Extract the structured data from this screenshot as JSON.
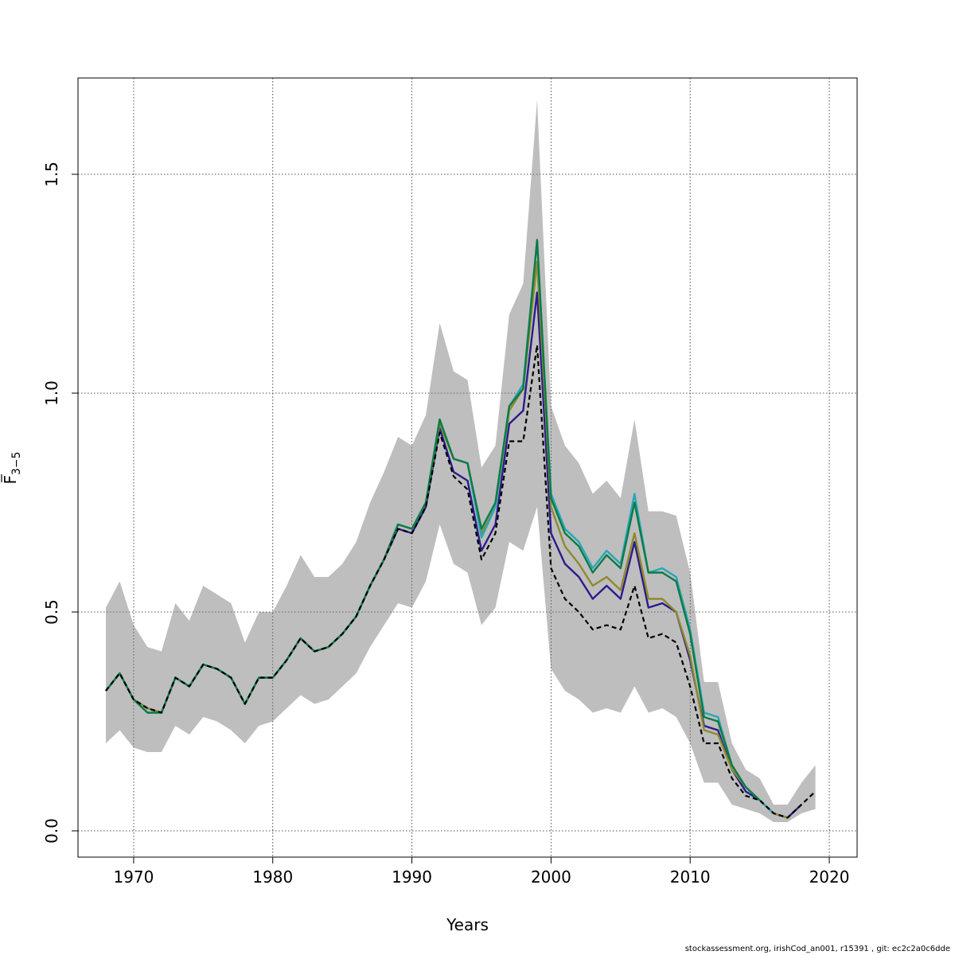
{
  "footer": "stockassessment.org, irishCod_an001, r15391 , git: ec2c2a0c6dde",
  "chart_data": {
    "type": "line",
    "title": "",
    "xlabel": "Years",
    "ylabel_base": "F",
    "ylabel_sub": "3−5",
    "xlim": [
      1966,
      2022
    ],
    "ylim": [
      -0.06,
      1.72
    ],
    "xticks": [
      1970,
      1980,
      1990,
      2000,
      2010,
      2020
    ],
    "yticks": [
      0.0,
      0.5,
      1.0,
      1.5
    ],
    "ytick_labels": [
      "0.0",
      "0.5",
      "1.0",
      "1.5"
    ],
    "grid": true,
    "colors": {
      "band": "#bebebe",
      "base": "#000000",
      "peel1": "#2c1b8b",
      "peel2": "#8f8a2e",
      "peel3": "#27a6b8",
      "peel4": "#0c7c44"
    },
    "band": {
      "x": [
        1968,
        1969,
        1970,
        1971,
        1972,
        1973,
        1974,
        1975,
        1976,
        1977,
        1978,
        1979,
        1980,
        1981,
        1982,
        1983,
        1984,
        1985,
        1986,
        1987,
        1988,
        1989,
        1990,
        1991,
        1992,
        1993,
        1994,
        1995,
        1996,
        1997,
        1998,
        1999,
        2000,
        2001,
        2002,
        2003,
        2004,
        2005,
        2006,
        2007,
        2008,
        2009,
        2010,
        2011,
        2012,
        2013,
        2014,
        2015,
        2016,
        2017,
        2018,
        2019
      ],
      "lower": [
        0.2,
        0.23,
        0.19,
        0.18,
        0.18,
        0.24,
        0.22,
        0.26,
        0.25,
        0.23,
        0.2,
        0.24,
        0.25,
        0.28,
        0.31,
        0.29,
        0.3,
        0.33,
        0.36,
        0.42,
        0.47,
        0.52,
        0.51,
        0.57,
        0.7,
        0.61,
        0.59,
        0.47,
        0.51,
        0.66,
        0.64,
        0.74,
        0.37,
        0.32,
        0.3,
        0.27,
        0.28,
        0.27,
        0.33,
        0.27,
        0.28,
        0.26,
        0.2,
        0.11,
        0.11,
        0.06,
        0.05,
        0.04,
        0.02,
        0.02,
        0.04,
        0.05
      ],
      "upper": [
        0.51,
        0.57,
        0.47,
        0.42,
        0.41,
        0.52,
        0.48,
        0.56,
        0.54,
        0.52,
        0.43,
        0.5,
        0.5,
        0.56,
        0.63,
        0.58,
        0.58,
        0.61,
        0.66,
        0.75,
        0.82,
        0.9,
        0.88,
        0.95,
        1.16,
        1.05,
        1.03,
        0.83,
        0.88,
        1.18,
        1.25,
        1.67,
        0.97,
        0.88,
        0.84,
        0.77,
        0.8,
        0.76,
        0.94,
        0.73,
        0.73,
        0.72,
        0.59,
        0.34,
        0.34,
        0.2,
        0.14,
        0.12,
        0.06,
        0.06,
        0.11,
        0.15
      ]
    },
    "series": [
      {
        "key": "base",
        "style": "dashed",
        "x": [
          1968,
          1969,
          1970,
          1971,
          1972,
          1973,
          1974,
          1975,
          1976,
          1977,
          1978,
          1979,
          1980,
          1981,
          1982,
          1983,
          1984,
          1985,
          1986,
          1987,
          1988,
          1989,
          1990,
          1991,
          1992,
          1993,
          1994,
          1995,
          1996,
          1997,
          1998,
          1999,
          2000,
          2001,
          2002,
          2003,
          2004,
          2005,
          2006,
          2007,
          2008,
          2009,
          2010,
          2011,
          2012,
          2013,
          2014,
          2015,
          2016,
          2017,
          2018,
          2019
        ],
        "y": [
          0.32,
          0.36,
          0.3,
          0.28,
          0.27,
          0.35,
          0.33,
          0.38,
          0.37,
          0.35,
          0.29,
          0.35,
          0.35,
          0.39,
          0.44,
          0.41,
          0.42,
          0.45,
          0.49,
          0.56,
          0.62,
          0.69,
          0.68,
          0.74,
          0.91,
          0.81,
          0.78,
          0.62,
          0.68,
          0.89,
          0.89,
          1.11,
          0.6,
          0.53,
          0.5,
          0.46,
          0.47,
          0.46,
          0.56,
          0.44,
          0.45,
          0.43,
          0.33,
          0.2,
          0.2,
          0.12,
          0.08,
          0.07,
          0.04,
          0.03,
          0.06,
          0.09
        ]
      },
      {
        "key": "peel1",
        "style": "solid",
        "x": [
          1968,
          1969,
          1970,
          1971,
          1972,
          1973,
          1974,
          1975,
          1976,
          1977,
          1978,
          1979,
          1980,
          1981,
          1982,
          1983,
          1984,
          1985,
          1986,
          1987,
          1988,
          1989,
          1990,
          1991,
          1992,
          1993,
          1994,
          1995,
          1996,
          1997,
          1998,
          1999,
          2000,
          2001,
          2002,
          2003,
          2004,
          2005,
          2006,
          2007,
          2008,
          2009,
          2010,
          2011,
          2012,
          2013,
          2014,
          2015,
          2016,
          2017,
          2018
        ],
        "y": [
          0.32,
          0.36,
          0.3,
          0.28,
          0.27,
          0.35,
          0.33,
          0.38,
          0.37,
          0.35,
          0.29,
          0.35,
          0.35,
          0.39,
          0.44,
          0.41,
          0.42,
          0.45,
          0.49,
          0.56,
          0.62,
          0.69,
          0.68,
          0.74,
          0.92,
          0.82,
          0.8,
          0.64,
          0.7,
          0.93,
          0.96,
          1.23,
          0.68,
          0.61,
          0.58,
          0.53,
          0.56,
          0.53,
          0.66,
          0.51,
          0.52,
          0.5,
          0.39,
          0.24,
          0.23,
          0.14,
          0.09,
          0.07,
          0.04,
          0.03,
          0.06
        ]
      },
      {
        "key": "peel2",
        "style": "solid",
        "x": [
          1968,
          1969,
          1970,
          1971,
          1972,
          1973,
          1974,
          1975,
          1976,
          1977,
          1978,
          1979,
          1980,
          1981,
          1982,
          1983,
          1984,
          1985,
          1986,
          1987,
          1988,
          1989,
          1990,
          1991,
          1992,
          1993,
          1994,
          1995,
          1996,
          1997,
          1998,
          1999,
          2000,
          2001,
          2002,
          2003,
          2004,
          2005,
          2006,
          2007,
          2008,
          2009,
          2010,
          2011,
          2012,
          2013,
          2014,
          2015,
          2016,
          2017
        ],
        "y": [
          0.32,
          0.36,
          0.3,
          0.28,
          0.27,
          0.35,
          0.33,
          0.38,
          0.37,
          0.35,
          0.29,
          0.35,
          0.35,
          0.39,
          0.44,
          0.41,
          0.42,
          0.45,
          0.49,
          0.56,
          0.62,
          0.7,
          0.69,
          0.75,
          0.93,
          0.85,
          0.84,
          0.68,
          0.74,
          0.96,
          1.01,
          1.3,
          0.74,
          0.65,
          0.61,
          0.56,
          0.58,
          0.55,
          0.68,
          0.53,
          0.53,
          0.5,
          0.4,
          0.23,
          0.22,
          0.14,
          0.1,
          0.07,
          0.04,
          0.03
        ]
      },
      {
        "key": "peel3",
        "style": "solid",
        "x": [
          1968,
          1969,
          1970,
          1971,
          1972,
          1973,
          1974,
          1975,
          1976,
          1977,
          1978,
          1979,
          1980,
          1981,
          1982,
          1983,
          1984,
          1985,
          1986,
          1987,
          1988,
          1989,
          1990,
          1991,
          1992,
          1993,
          1994,
          1995,
          1996,
          1997,
          1998,
          1999,
          2000,
          2001,
          2002,
          2003,
          2004,
          2005,
          2006,
          2007,
          2008,
          2009,
          2010,
          2011,
          2012,
          2013,
          2014,
          2015,
          2016
        ],
        "y": [
          0.32,
          0.36,
          0.3,
          0.27,
          0.27,
          0.35,
          0.33,
          0.38,
          0.37,
          0.35,
          0.29,
          0.35,
          0.35,
          0.39,
          0.44,
          0.41,
          0.42,
          0.45,
          0.49,
          0.56,
          0.62,
          0.7,
          0.69,
          0.75,
          0.94,
          0.85,
          0.84,
          0.67,
          0.74,
          0.97,
          1.02,
          1.35,
          0.77,
          0.69,
          0.66,
          0.6,
          0.64,
          0.61,
          0.77,
          0.59,
          0.6,
          0.58,
          0.46,
          0.27,
          0.26,
          0.15,
          0.1,
          0.07,
          0.04
        ]
      },
      {
        "key": "peel4",
        "style": "solid",
        "x": [
          1968,
          1969,
          1970,
          1971,
          1972,
          1973,
          1974,
          1975,
          1976,
          1977,
          1978,
          1979,
          1980,
          1981,
          1982,
          1983,
          1984,
          1985,
          1986,
          1987,
          1988,
          1989,
          1990,
          1991,
          1992,
          1993,
          1994,
          1995,
          1996,
          1997,
          1998,
          1999,
          2000,
          2001,
          2002,
          2003,
          2004,
          2005,
          2006,
          2007,
          2008,
          2009,
          2010,
          2011,
          2012,
          2013,
          2014,
          2015
        ],
        "y": [
          0.32,
          0.36,
          0.3,
          0.27,
          0.27,
          0.35,
          0.33,
          0.38,
          0.37,
          0.35,
          0.29,
          0.35,
          0.35,
          0.39,
          0.44,
          0.41,
          0.42,
          0.45,
          0.49,
          0.56,
          0.62,
          0.7,
          0.69,
          0.75,
          0.94,
          0.85,
          0.84,
          0.69,
          0.75,
          0.97,
          1.01,
          1.35,
          0.76,
          0.68,
          0.65,
          0.59,
          0.63,
          0.6,
          0.75,
          0.59,
          0.59,
          0.57,
          0.45,
          0.26,
          0.25,
          0.15,
          0.1,
          0.07
        ]
      }
    ]
  }
}
